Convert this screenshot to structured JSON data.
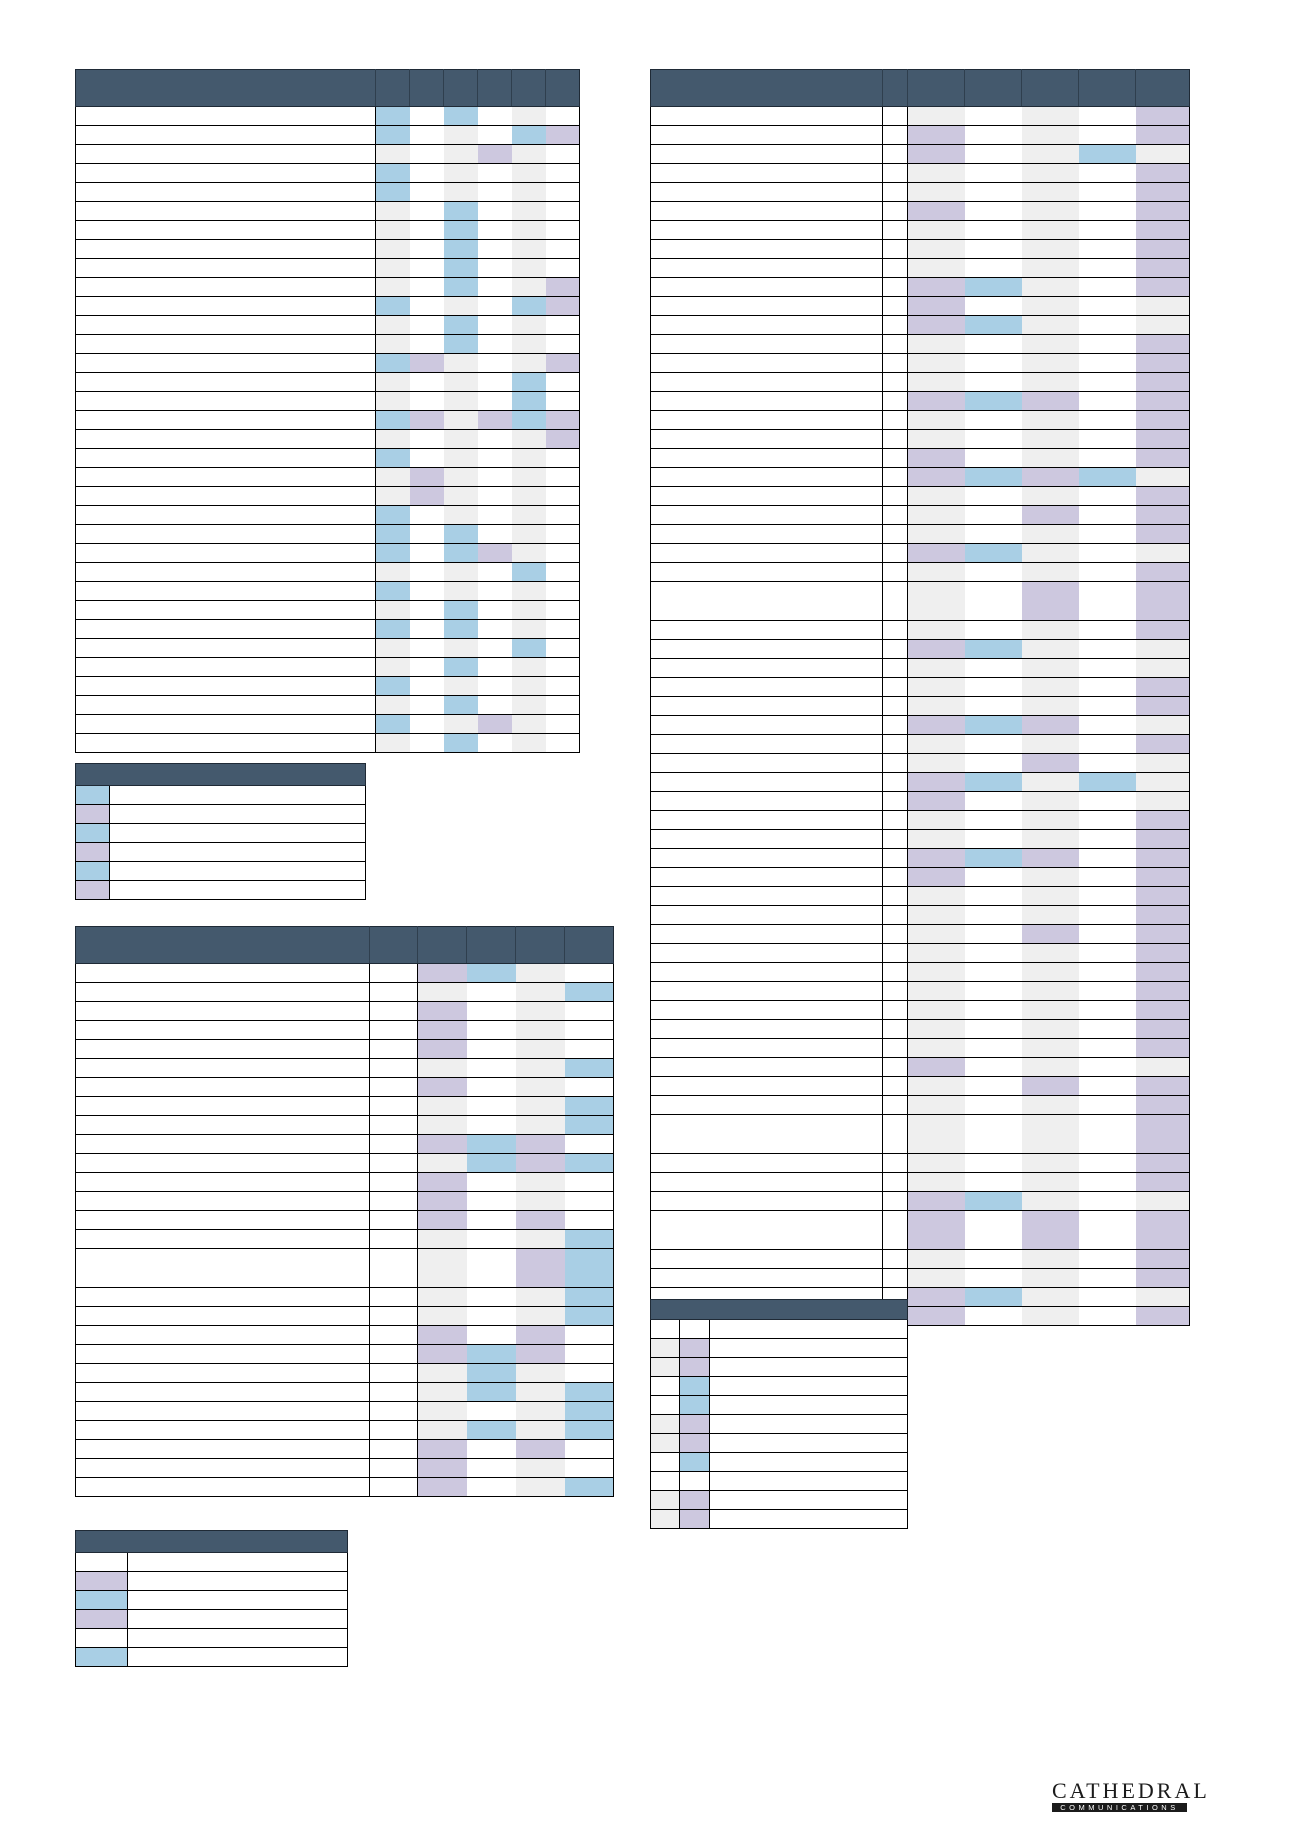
{
  "tables": [
    {
      "id": "main-left-top",
      "cols": [
        "",
        "",
        "",
        "",
        "",
        "",
        ""
      ],
      "rows": [
        {
          "h": 1,
          "c": "BWBWGW"
        },
        {
          "h": 1,
          "c": "BWGWBP"
        },
        {
          "h": 1,
          "c": "GWGPGW"
        },
        {
          "h": 1,
          "c": "BWGWGW"
        },
        {
          "h": 1,
          "c": "BWGWGW"
        },
        {
          "h": 1,
          "c": "GWBWGW"
        },
        {
          "h": 1,
          "c": "GWBWGW"
        },
        {
          "h": 1,
          "c": "GWBWGW"
        },
        {
          "h": 1,
          "c": "GWBWGW"
        },
        {
          "h": 1,
          "c": "GWBWGP"
        },
        {
          "h": 1,
          "c": "BWGWBP"
        },
        {
          "h": 1,
          "c": "GWBWGW"
        },
        {
          "h": 1,
          "c": "GWBWGW"
        },
        {
          "h": 1,
          "c": "BPGWGP"
        },
        {
          "h": 1,
          "c": "GWGWBW"
        },
        {
          "h": 1,
          "c": "GWGWBW"
        },
        {
          "h": 1,
          "c": "BPGPBP"
        },
        {
          "h": 1,
          "c": "GWGWGP"
        },
        {
          "h": 1,
          "c": "BWGWGW"
        },
        {
          "h": 1,
          "c": "GPGWGW"
        },
        {
          "h": 1,
          "c": "GPGWGW"
        },
        {
          "h": 1,
          "c": "BWGWGW"
        },
        {
          "h": 1,
          "c": "BWBWGW"
        },
        {
          "h": 1,
          "c": "BWBPGW"
        },
        {
          "h": 1,
          "c": "GWGWBW"
        },
        {
          "h": 1,
          "c": "BWGWGW"
        },
        {
          "h": 1,
          "c": "GWBWGW"
        },
        {
          "h": 1,
          "c": "BWBWGW"
        },
        {
          "h": 1,
          "c": "GWGWBW"
        },
        {
          "h": 1,
          "c": "GWBWGW"
        },
        {
          "h": 1,
          "c": "BWGWGW"
        },
        {
          "h": 1,
          "c": "GWBWGW"
        },
        {
          "h": 1,
          "c": "BWGPGW"
        },
        {
          "h": 1,
          "c": "GWBWGW"
        }
      ]
    },
    {
      "id": "key-left-top",
      "cols": [
        ""
      ],
      "rows": [
        {
          "h": 1,
          "c": "B"
        },
        {
          "h": 1,
          "c": "P"
        },
        {
          "h": 1,
          "c": "B"
        },
        {
          "h": 1,
          "c": "P"
        },
        {
          "h": 1,
          "c": "B"
        },
        {
          "h": 1,
          "c": "P"
        }
      ]
    },
    {
      "id": "main-left-bottom",
      "cols": [
        "",
        "",
        "",
        "",
        "",
        ""
      ],
      "rows": [
        {
          "h": 1,
          "c": "PBGW"
        },
        {
          "h": 1,
          "c": "GWGB"
        },
        {
          "h": 1,
          "c": "PWGW"
        },
        {
          "h": 1,
          "c": "PWGW"
        },
        {
          "h": 1,
          "c": "PWGW"
        },
        {
          "h": 1,
          "c": "GWGB"
        },
        {
          "h": 1,
          "c": "PWGW"
        },
        {
          "h": 1,
          "c": "GWGB"
        },
        {
          "h": 1,
          "c": "GWGB"
        },
        {
          "h": 1,
          "c": "PBPW"
        },
        {
          "h": 1,
          "c": "GBPB"
        },
        {
          "h": 1,
          "c": "PWGW"
        },
        {
          "h": 1,
          "c": "PWGW"
        },
        {
          "h": 1,
          "c": "PWPW"
        },
        {
          "h": 1,
          "c": "GWGB"
        },
        {
          "h": 2,
          "c": "GWPB"
        },
        {
          "h": 1,
          "c": "GWGB"
        },
        {
          "h": 1,
          "c": "GWGB"
        },
        {
          "h": 1,
          "c": "PWPW"
        },
        {
          "h": 1,
          "c": "PBPW"
        },
        {
          "h": 1,
          "c": "GBGW"
        },
        {
          "h": 1,
          "c": "GBGB"
        },
        {
          "h": 1,
          "c": "GWGB"
        },
        {
          "h": 1,
          "c": "GBGB"
        },
        {
          "h": 1,
          "c": "PWPW"
        },
        {
          "h": 1,
          "c": "PWGW"
        },
        {
          "h": 1,
          "c": "PWGB"
        }
      ]
    },
    {
      "id": "key-left-bottom",
      "cols": [
        ""
      ],
      "rows": [
        {
          "h": 1,
          "c": "W"
        },
        {
          "h": 1,
          "c": "P"
        },
        {
          "h": 1,
          "c": "B"
        },
        {
          "h": 1,
          "c": "P"
        },
        {
          "h": 1,
          "c": "W"
        },
        {
          "h": 1,
          "c": "B"
        }
      ]
    },
    {
      "id": "main-right",
      "cols": [
        "",
        "",
        "",
        "",
        "",
        "",
        ""
      ],
      "rows": [
        {
          "h": 1,
          "c": "GWGWP"
        },
        {
          "h": 1,
          "c": "PWGWP"
        },
        {
          "h": 1,
          "c": "PWGBG"
        },
        {
          "h": 1,
          "c": "GWGWP"
        },
        {
          "h": 1,
          "c": "GWGWP"
        },
        {
          "h": 1,
          "c": "PWGWP"
        },
        {
          "h": 1,
          "c": "GWGWP"
        },
        {
          "h": 1,
          "c": "GWGWP"
        },
        {
          "h": 1,
          "c": "GWGWP"
        },
        {
          "h": 1,
          "c": "PBGWP"
        },
        {
          "h": 1,
          "c": "PWGWG"
        },
        {
          "h": 1,
          "c": "PBGWG"
        },
        {
          "h": 1,
          "c": "GWGWP"
        },
        {
          "h": 1,
          "c": "GWGWP"
        },
        {
          "h": 1,
          "c": "GWGWP"
        },
        {
          "h": 1,
          "c": "PBPWP"
        },
        {
          "h": 1,
          "c": "GWGWP"
        },
        {
          "h": 1,
          "c": "GWGWP"
        },
        {
          "h": 1,
          "c": "PWGWP"
        },
        {
          "h": 1,
          "c": "PBPBG"
        },
        {
          "h": 1,
          "c": "GWGWP"
        },
        {
          "h": 1,
          "c": "GWPWP"
        },
        {
          "h": 1,
          "c": "GWGWP"
        },
        {
          "h": 1,
          "c": "PBGWG"
        },
        {
          "h": 1,
          "c": "GWGWP"
        },
        {
          "h": 2,
          "c": "GWPWP"
        },
        {
          "h": 1,
          "c": "GWGWP"
        },
        {
          "h": 1,
          "c": "PBGWG"
        },
        {
          "h": 1,
          "c": "GWGWG"
        },
        {
          "h": 1,
          "c": "GWGWP"
        },
        {
          "h": 1,
          "c": "GWGWP"
        },
        {
          "h": 1,
          "c": "PBPWG"
        },
        {
          "h": 1,
          "c": "GWGWP"
        },
        {
          "h": 1,
          "c": "GWPWG"
        },
        {
          "h": 1,
          "c": "PBGBG"
        },
        {
          "h": 1,
          "c": "PWGWG"
        },
        {
          "h": 1,
          "c": "GWGWP"
        },
        {
          "h": 1,
          "c": "GWGWP"
        },
        {
          "h": 1,
          "c": "PBPWP"
        },
        {
          "h": 1,
          "c": "PWGWP"
        },
        {
          "h": 1,
          "c": "GWGWP"
        },
        {
          "h": 1,
          "c": "GWGWP"
        },
        {
          "h": 1,
          "c": "GWPWP"
        },
        {
          "h": 1,
          "c": "GWGWP"
        },
        {
          "h": 1,
          "c": "GWGWP"
        },
        {
          "h": 1,
          "c": "GWGWP"
        },
        {
          "h": 1,
          "c": "GWGWP"
        },
        {
          "h": 1,
          "c": "GWGWP"
        },
        {
          "h": 1,
          "c": "GWGWP"
        },
        {
          "h": 1,
          "c": "PWGWG"
        },
        {
          "h": 1,
          "c": "GWPWP"
        },
        {
          "h": 1,
          "c": "GWGWP"
        },
        {
          "h": 2,
          "c": "GWGWP"
        },
        {
          "h": 1,
          "c": "GWGWP"
        },
        {
          "h": 1,
          "c": "GWGWP"
        },
        {
          "h": 1,
          "c": "PBGWG"
        },
        {
          "h": 2,
          "c": "PWPWP"
        },
        {
          "h": 1,
          "c": "GWGWP"
        },
        {
          "h": 1,
          "c": "GWGWP"
        },
        {
          "h": 1,
          "c": "PBGWG"
        },
        {
          "h": 1,
          "c": "PWGWP"
        }
      ]
    },
    {
      "id": "key-right",
      "cols": [
        "",
        ""
      ],
      "rows": [
        {
          "h": 1,
          "c": "WW"
        },
        {
          "h": 1,
          "c": "GP"
        },
        {
          "h": 1,
          "c": "GP"
        },
        {
          "h": 1,
          "c": "WB"
        },
        {
          "h": 1,
          "c": "WB"
        },
        {
          "h": 1,
          "c": "GP"
        },
        {
          "h": 1,
          "c": "GP"
        },
        {
          "h": 1,
          "c": "WB"
        },
        {
          "h": 1,
          "c": "WW"
        },
        {
          "h": 1,
          "c": "GP"
        },
        {
          "h": 1,
          "c": "GP"
        }
      ]
    }
  ],
  "colors": {
    "W": "#ffffff",
    "G": "#efefef",
    "B": "#a9cfe5",
    "P": "#cdc8df",
    "header": "#44596d"
  },
  "logo": {
    "word": "CATHEDRAL",
    "sub": "COMMUNICATIONS"
  }
}
